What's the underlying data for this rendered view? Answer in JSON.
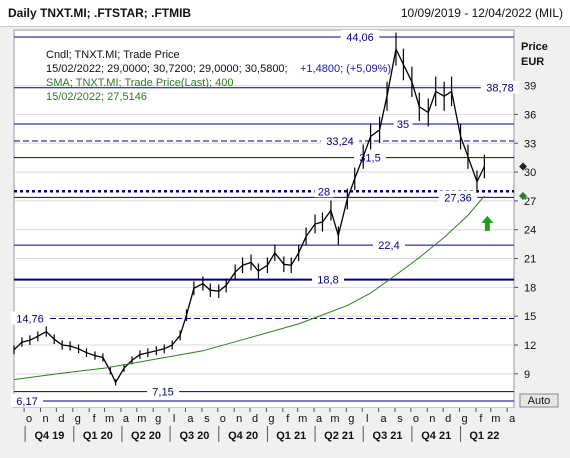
{
  "header": {
    "title": "Daily TNXT.MI; .FTSTAR; .FTMIB",
    "date_range": "10/09/2019 - 12/04/2022 (MIL)"
  },
  "legend": {
    "candle_label": "Cndl; TNXT.MI; Trade Price",
    "candle_values_prefix": "15/02/2022; 29,0000; 30,7200; 29,0000; 30,5800;",
    "candle_change": "+1,4800; (+5,09%)",
    "sma_label": "SMA; TNXT.MI; Trade Price(Last);  400",
    "sma_values": "15/02/2022; 27,5146"
  },
  "axis": {
    "unit_line1": "Price",
    "unit_line2": "EUR",
    "auto_label": "Auto",
    "y_ticks": [
      "39",
      "36",
      "33",
      "30",
      "27",
      "24",
      "21",
      "18",
      "15",
      "12",
      "9"
    ],
    "x_months": [
      "o",
      "n",
      "d",
      "g",
      "f",
      "m",
      "a",
      "m",
      "g",
      "l",
      "a",
      "s",
      "o",
      "n",
      "d",
      "g",
      "f",
      "m",
      "a",
      "m",
      "g",
      "l",
      "a",
      "s",
      "o",
      "n",
      "d",
      "g",
      "f",
      "m",
      "a"
    ],
    "x_quarters": [
      "Q4 19",
      "Q1 20",
      "Q2 20",
      "Q3 20",
      "Q4 20",
      "Q1 21",
      "Q2 21",
      "Q3 21",
      "Q4 21",
      "Q1 22"
    ]
  },
  "colors": {
    "grid": "#d8d8d8",
    "level_line": "#000080",
    "candles": "#000000",
    "sma": "#2e7d1f",
    "legend_text": "#000000",
    "legend_change": "#1a1aaa",
    "sma_text": "#2e7d1f",
    "arrow_up": "#1aa01a"
  },
  "chart_data": {
    "type": "line",
    "title": "Daily TNXT.MI; .FTSTAR; .FTMIB",
    "ylabel": "Price EUR",
    "ylim": [
      6.17,
      44.06
    ],
    "xlim": [
      "2019-09-10",
      "2022-04-12"
    ],
    "levels": [
      {
        "value": 44.06,
        "label": "44,06",
        "style": "solid"
      },
      {
        "value": 38.78,
        "label": "38,78",
        "style": "solid"
      },
      {
        "value": 35,
        "label": "35",
        "style": "solid"
      },
      {
        "value": 33.24,
        "label": "33,24",
        "style": "dashed"
      },
      {
        "value": 31.5,
        "label": "31,5",
        "style": "solid"
      },
      {
        "value": 28,
        "label": "28",
        "style": "dotted-bold"
      },
      {
        "value": 27.36,
        "label": "27,36",
        "style": "solid"
      },
      {
        "value": 22.4,
        "label": "22,4",
        "style": "solid"
      },
      {
        "value": 18.8,
        "label": "18,8",
        "style": "solid-bold"
      },
      {
        "value": 14.76,
        "label": "14,76",
        "style": "dashed"
      },
      {
        "value": 7.15,
        "label": "7,15",
        "style": "solid"
      },
      {
        "value": 6.17,
        "label": "6,17",
        "style": "solid"
      }
    ],
    "series": [
      {
        "name": "TNXT.MI",
        "x": [
          "2019-09-10",
          "2019-09-25",
          "2019-10-10",
          "2019-10-25",
          "2019-11-10",
          "2019-11-25",
          "2019-12-10",
          "2019-12-25",
          "2020-01-10",
          "2020-01-25",
          "2020-02-10",
          "2020-02-25",
          "2020-03-10",
          "2020-03-20",
          "2020-04-05",
          "2020-04-20",
          "2020-05-05",
          "2020-05-20",
          "2020-06-05",
          "2020-06-20",
          "2020-07-05",
          "2020-07-20",
          "2020-08-01",
          "2020-08-15",
          "2020-09-01",
          "2020-09-15",
          "2020-10-01",
          "2020-10-15",
          "2020-11-01",
          "2020-11-15",
          "2020-12-01",
          "2020-12-15",
          "2021-01-01",
          "2021-01-15",
          "2021-02-01",
          "2021-02-15",
          "2021-03-01",
          "2021-03-15",
          "2021-04-01",
          "2021-04-15",
          "2021-05-01",
          "2021-05-15",
          "2021-06-01",
          "2021-06-15",
          "2021-07-01",
          "2021-07-15",
          "2021-08-01",
          "2021-08-15",
          "2021-09-01",
          "2021-09-15",
          "2021-10-01",
          "2021-10-15",
          "2021-11-01",
          "2021-11-15",
          "2021-12-01",
          "2021-12-15",
          "2022-01-01",
          "2022-01-15",
          "2022-02-01",
          "2022-02-15"
        ],
        "values": [
          11.5,
          12.3,
          12.5,
          12.9,
          13.4,
          12.6,
          12.0,
          11.9,
          11.6,
          11.2,
          10.9,
          10.7,
          9.3,
          8.1,
          9.6,
          10.4,
          11.0,
          11.2,
          11.4,
          11.6,
          12.0,
          13.0,
          15.1,
          17.9,
          18.4,
          17.7,
          17.6,
          18.2,
          19.6,
          20.3,
          20.6,
          19.7,
          20.3,
          21.6,
          20.4,
          20.3,
          21.6,
          23.3,
          24.6,
          24.8,
          26.0,
          23.4,
          27.2,
          29.3,
          31.6,
          33.7,
          34.4,
          37.9,
          42.8,
          41.2,
          39.4,
          36.8,
          36.2,
          38.4,
          37.9,
          38.4,
          33.7,
          31.6,
          29.0,
          30.58
        ]
      },
      {
        "name": "SMA 400",
        "x": [
          "2019-09-10",
          "2019-12-01",
          "2020-03-01",
          "2020-06-01",
          "2020-09-01",
          "2020-12-01",
          "2021-03-01",
          "2021-06-01",
          "2021-07-15",
          "2021-09-01",
          "2021-10-15",
          "2021-12-01",
          "2022-01-15",
          "2022-02-15"
        ],
        "values": [
          8.4,
          9.0,
          9.6,
          10.5,
          11.4,
          12.8,
          14.2,
          16.1,
          17.4,
          19.3,
          21.1,
          23.2,
          25.5,
          27.51
        ]
      }
    ],
    "markers": [
      {
        "type": "arrow-up",
        "x": "2022-02-15",
        "note": "buy signal"
      }
    ],
    "grid": true,
    "legend": "top-left"
  }
}
